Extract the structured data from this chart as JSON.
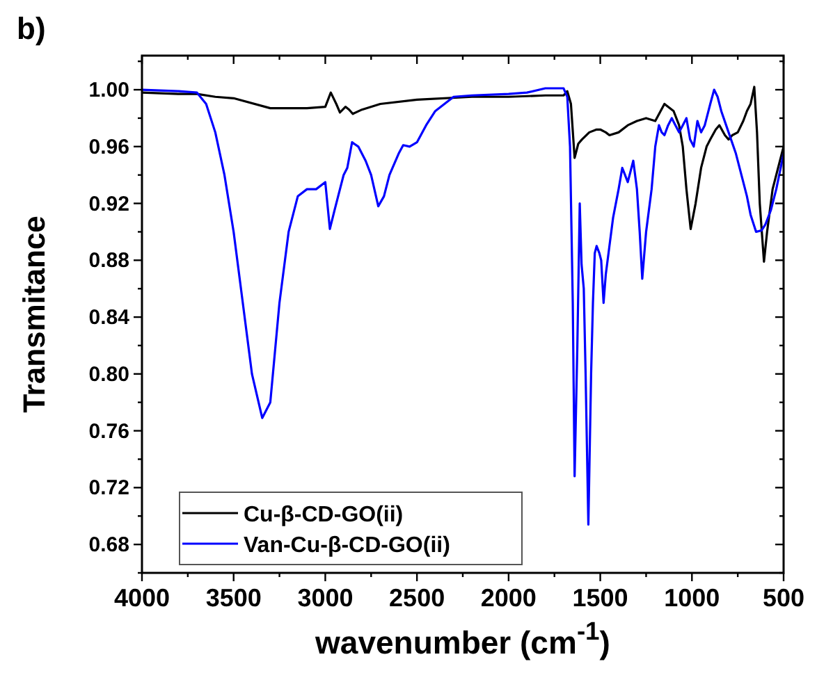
{
  "chart_data": {
    "type": "line",
    "title": "b)",
    "xlabel": "wavenumber (cm$^{-1}$)",
    "ylabel": "Transmitance",
    "xlim": [
      4000,
      500
    ],
    "xticks": [
      4000,
      {
        "value": 3750,
        "label": null
      },
      3500,
      {
        "value": 3250,
        "label": null
      },
      3000,
      {
        "value": 2750,
        "label": null
      },
      2500,
      {
        "value": 2250,
        "label": null
      },
      2000,
      {
        "value": 1750,
        "label": null
      },
      1500,
      {
        "value": 1250,
        "label": null
      },
      1000,
      {
        "value": 750,
        "label": null
      },
      500
    ],
    "ylim": [
      0.66,
      1.024
    ],
    "yticks": [
      {
        "value": 0.66,
        "label": null
      },
      0.68,
      {
        "value": 0.7,
        "label": null
      },
      0.72,
      {
        "value": 0.74,
        "label": null
      },
      0.76,
      {
        "value": 0.78,
        "label": null
      },
      {
        "value": 0.8,
        "label": "0.80"
      },
      {
        "value": 0.82,
        "label": null
      },
      0.84,
      {
        "value": 0.86,
        "label": null
      },
      0.88,
      {
        "value": 0.9,
        "label": null
      },
      0.92,
      {
        "value": 0.94,
        "label": null
      },
      0.96,
      {
        "value": 0.98,
        "label": null
      },
      {
        "value": 1,
        "label": "1.00"
      },
      {
        "value": 1.02,
        "label": null
      }
    ],
    "legend": "bottom left",
    "grid": false,
    "line_style": "solid",
    "series": [
      {
        "name": "Cu-β-CD-GO(ii)",
        "color": "#000000",
        "x": [
          4000,
          3800,
          3700,
          3600,
          3500,
          3300,
          3100,
          3000,
          2970,
          2940,
          2920,
          2890,
          2870,
          2850,
          2800,
          2700,
          2500,
          2200,
          2000,
          1800,
          1700,
          1680,
          1660,
          1640,
          1620,
          1600,
          1560,
          1520,
          1500,
          1470,
          1450,
          1400,
          1350,
          1300,
          1250,
          1200,
          1150,
          1100,
          1070,
          1050,
          1030,
          1007,
          980,
          950,
          920,
          900,
          870,
          850,
          820,
          800,
          780,
          750,
          720,
          700,
          680,
          660,
          645,
          630,
          607,
          590,
          560,
          530,
          500
        ],
        "values": [
          0.998,
          0.997,
          0.997,
          0.995,
          0.994,
          0.987,
          0.987,
          0.988,
          0.998,
          0.99,
          0.984,
          0.988,
          0.986,
          0.983,
          0.986,
          0.99,
          0.993,
          0.995,
          0.995,
          0.996,
          0.996,
          0.999,
          0.99,
          0.952,
          0.962,
          0.965,
          0.97,
          0.972,
          0.972,
          0.97,
          0.968,
          0.97,
          0.975,
          0.978,
          0.98,
          0.978,
          0.99,
          0.985,
          0.975,
          0.96,
          0.93,
          0.902,
          0.92,
          0.945,
          0.96,
          0.965,
          0.972,
          0.975,
          0.968,
          0.965,
          0.968,
          0.97,
          0.978,
          0.985,
          0.99,
          1.002,
          0.97,
          0.92,
          0.879,
          0.9,
          0.93,
          0.945,
          0.96
        ]
      },
      {
        "name": "Van-Cu-β-CD-GO(ii)",
        "color": "#0000ff",
        "x": [
          4000,
          3800,
          3700,
          3650,
          3600,
          3550,
          3500,
          3450,
          3400,
          3344,
          3300,
          3250,
          3200,
          3150,
          3100,
          3050,
          3000,
          2975,
          2950,
          2930,
          2900,
          2880,
          2854,
          2820,
          2780,
          2750,
          2711,
          2680,
          2650,
          2600,
          2575,
          2540,
          2500,
          2450,
          2400,
          2350,
          2300,
          2200,
          2000,
          1900,
          1800,
          1700,
          1680,
          1665,
          1650,
          1640,
          1625,
          1612,
          1602,
          1590,
          1580,
          1565,
          1550,
          1540,
          1530,
          1520,
          1505,
          1495,
          1482,
          1470,
          1450,
          1430,
          1400,
          1380,
          1365,
          1350,
          1320,
          1300,
          1285,
          1271,
          1250,
          1220,
          1200,
          1180,
          1165,
          1150,
          1130,
          1110,
          1090,
          1070,
          1050,
          1030,
          1010,
          990,
          970,
          950,
          930,
          900,
          879,
          860,
          840,
          800,
          760,
          720,
          700,
          680,
          650,
          620,
          600,
          570,
          540,
          500
        ],
        "values": [
          1.0,
          0.999,
          0.998,
          0.99,
          0.97,
          0.94,
          0.9,
          0.85,
          0.8,
          0.769,
          0.78,
          0.85,
          0.9,
          0.925,
          0.93,
          0.93,
          0.935,
          0.902,
          0.915,
          0.925,
          0.94,
          0.945,
          0.963,
          0.96,
          0.95,
          0.94,
          0.918,
          0.925,
          0.94,
          0.955,
          0.961,
          0.96,
          0.963,
          0.975,
          0.985,
          0.99,
          0.995,
          0.996,
          0.997,
          0.998,
          1.001,
          1.001,
          0.995,
          0.96,
          0.85,
          0.728,
          0.82,
          0.92,
          0.877,
          0.86,
          0.8,
          0.694,
          0.8,
          0.85,
          0.885,
          0.89,
          0.885,
          0.88,
          0.85,
          0.87,
          0.89,
          0.91,
          0.93,
          0.945,
          0.94,
          0.935,
          0.95,
          0.93,
          0.9,
          0.867,
          0.9,
          0.93,
          0.96,
          0.975,
          0.97,
          0.968,
          0.975,
          0.98,
          0.975,
          0.97,
          0.975,
          0.98,
          0.965,
          0.96,
          0.978,
          0.97,
          0.975,
          0.99,
          1.0,
          0.995,
          0.985,
          0.97,
          0.955,
          0.935,
          0.925,
          0.912,
          0.9,
          0.901,
          0.905,
          0.915,
          0.93,
          0.955
        ]
      }
    ]
  }
}
